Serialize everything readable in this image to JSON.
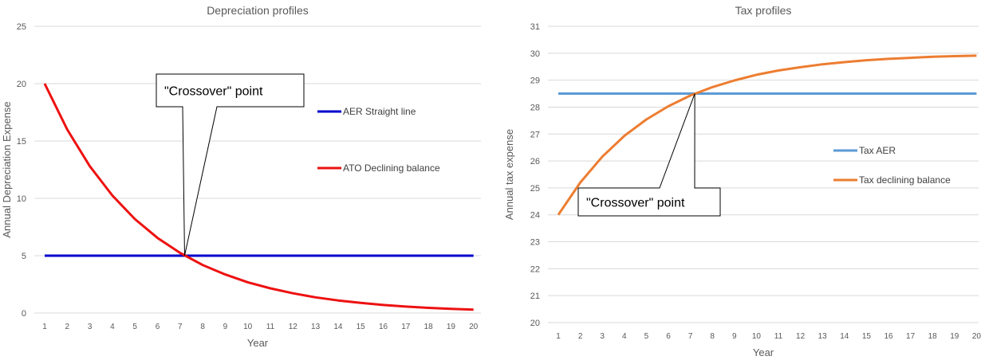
{
  "charts": [
    {
      "type": "line",
      "title": "Depreciation profiles",
      "xlabel": "Year",
      "ylabel": "Annual Depreciation Expense",
      "categories": [
        1,
        2,
        3,
        4,
        5,
        6,
        7,
        8,
        9,
        10,
        11,
        12,
        13,
        14,
        15,
        16,
        17,
        18,
        19,
        20
      ],
      "ylim": [
        0,
        25
      ],
      "yticks": [
        0,
        5,
        10,
        15,
        20,
        25
      ],
      "grid": true,
      "legend_position": "right",
      "series": [
        {
          "name": "AER Straight line",
          "color": "#0000cc",
          "values": [
            5,
            5,
            5,
            5,
            5,
            5,
            5,
            5,
            5,
            5,
            5,
            5,
            5,
            5,
            5,
            5,
            5,
            5,
            5,
            5
          ]
        },
        {
          "name": "ATO Declining balance",
          "color": "#ee1111",
          "values": [
            20,
            16,
            12.8,
            10.24,
            8.19,
            6.55,
            5.24,
            4.19,
            3.36,
            2.68,
            2.15,
            1.72,
            1.37,
            1.1,
            0.88,
            0.7,
            0.56,
            0.45,
            0.36,
            0.29
          ]
        }
      ],
      "callout": {
        "text": "\"Crossover\" point",
        "year": 7.2,
        "value": 5
      }
    },
    {
      "type": "line",
      "title": "Tax profiles",
      "xlabel": "Year",
      "ylabel": "Annual tax expense",
      "categories": [
        1,
        2,
        3,
        4,
        5,
        6,
        7,
        8,
        9,
        10,
        11,
        12,
        13,
        14,
        15,
        16,
        17,
        18,
        19,
        20
      ],
      "ylim": [
        20,
        31
      ],
      "yticks": [
        20,
        21,
        22,
        23,
        24,
        25,
        26,
        27,
        28,
        29,
        30,
        31
      ],
      "grid": true,
      "legend_position": "right",
      "series": [
        {
          "name": "Tax AER",
          "color": "#5b9bd5",
          "values": [
            28.5,
            28.5,
            28.5,
            28.5,
            28.5,
            28.5,
            28.5,
            28.5,
            28.5,
            28.5,
            28.5,
            28.5,
            28.5,
            28.5,
            28.5,
            28.5,
            28.5,
            28.5,
            28.5,
            28.5
          ]
        },
        {
          "name": "Tax declining balance",
          "color": "#ed7d31",
          "values": [
            24,
            25.2,
            26.16,
            26.93,
            27.54,
            28.03,
            28.43,
            28.74,
            28.99,
            29.2,
            29.36,
            29.48,
            29.59,
            29.67,
            29.74,
            29.79,
            29.83,
            29.87,
            29.89,
            29.91
          ]
        }
      ],
      "callout": {
        "text": "\"Crossover\" point",
        "year": 7.2,
        "value": 28.5
      }
    }
  ]
}
